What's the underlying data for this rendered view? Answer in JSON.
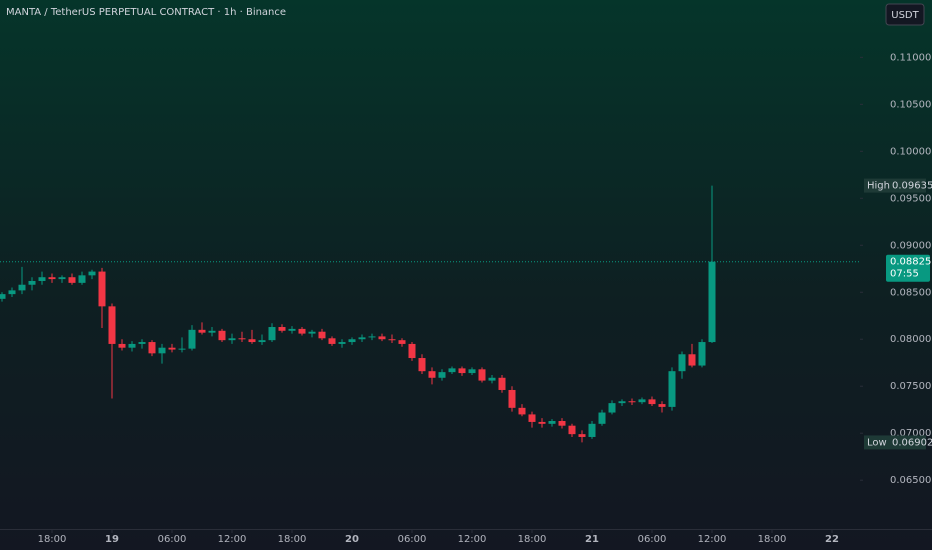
{
  "chart_data": {
    "type": "candlestick",
    "title": "MANTA / TetherUS PERPETUAL CONTRACT · 1h · Binance",
    "currency": "USDT",
    "up_color": "#089981",
    "down_color": "#f23645",
    "x": [
      -5,
      -4,
      -3,
      -2,
      -1,
      0,
      1,
      2,
      3,
      4,
      5,
      6,
      7,
      8,
      9,
      10,
      11,
      12,
      13,
      14,
      15,
      16,
      17,
      18,
      19,
      20,
      21,
      22,
      23,
      24,
      25,
      26,
      27,
      28,
      29,
      30,
      31,
      32,
      33,
      34,
      35,
      36,
      37,
      38,
      39,
      40,
      41,
      42,
      43,
      44,
      45,
      46,
      47,
      48,
      49,
      50,
      51,
      52,
      53,
      54,
      55,
      56,
      57,
      58,
      59,
      60,
      61,
      62,
      63,
      64,
      65,
      66
    ],
    "candles": [
      [
        0.0843,
        0.085,
        0.084,
        0.0848
      ],
      [
        0.0848,
        0.0855,
        0.0845,
        0.0852
      ],
      [
        0.0852,
        0.0877,
        0.0848,
        0.0858
      ],
      [
        0.0858,
        0.0866,
        0.0852,
        0.0862
      ],
      [
        0.0862,
        0.0872,
        0.0858,
        0.0866
      ],
      [
        0.0866,
        0.087,
        0.086,
        0.0864
      ],
      [
        0.0864,
        0.0868,
        0.086,
        0.0866
      ],
      [
        0.0866,
        0.087,
        0.0858,
        0.086
      ],
      [
        0.086,
        0.0872,
        0.0858,
        0.0868
      ],
      [
        0.0868,
        0.0874,
        0.0864,
        0.0872
      ],
      [
        0.0872,
        0.0876,
        0.0812,
        0.0835
      ],
      [
        0.0835,
        0.0838,
        0.0737,
        0.0795
      ],
      [
        0.0795,
        0.08,
        0.0788,
        0.0791
      ],
      [
        0.0791,
        0.0798,
        0.0787,
        0.0795
      ],
      [
        0.0795,
        0.08,
        0.079,
        0.0797
      ],
      [
        0.0797,
        0.0799,
        0.0782,
        0.0785
      ],
      [
        0.0785,
        0.0795,
        0.0774,
        0.0791
      ],
      [
        0.0791,
        0.0795,
        0.0786,
        0.0789
      ],
      [
        0.0789,
        0.0802,
        0.0786,
        0.079
      ],
      [
        0.079,
        0.0815,
        0.0788,
        0.081
      ],
      [
        0.081,
        0.0818,
        0.0805,
        0.0807
      ],
      [
        0.0807,
        0.0813,
        0.0803,
        0.0809
      ],
      [
        0.0809,
        0.0811,
        0.0797,
        0.0799
      ],
      [
        0.0799,
        0.0806,
        0.0795,
        0.0801
      ],
      [
        0.0801,
        0.0808,
        0.0797,
        0.08
      ],
      [
        0.08,
        0.081,
        0.0795,
        0.0797
      ],
      [
        0.0797,
        0.0805,
        0.0794,
        0.0799
      ],
      [
        0.0799,
        0.0817,
        0.0797,
        0.0813
      ],
      [
        0.0813,
        0.0816,
        0.0807,
        0.0809
      ],
      [
        0.0809,
        0.0814,
        0.0806,
        0.0811
      ],
      [
        0.0811,
        0.0813,
        0.0804,
        0.0806
      ],
      [
        0.0806,
        0.081,
        0.0802,
        0.0808
      ],
      [
        0.0808,
        0.0811,
        0.0799,
        0.0801
      ],
      [
        0.0801,
        0.0803,
        0.0793,
        0.0795
      ],
      [
        0.0795,
        0.08,
        0.0791,
        0.0797
      ],
      [
        0.0797,
        0.0802,
        0.0794,
        0.08
      ],
      [
        0.08,
        0.0805,
        0.0797,
        0.0802
      ],
      [
        0.0802,
        0.0806,
        0.0799,
        0.0803
      ],
      [
        0.0803,
        0.0806,
        0.0798,
        0.08
      ],
      [
        0.08,
        0.0805,
        0.0796,
        0.0799
      ],
      [
        0.0799,
        0.0801,
        0.0792,
        0.0795
      ],
      [
        0.0795,
        0.0797,
        0.0777,
        0.078
      ],
      [
        0.078,
        0.0784,
        0.0763,
        0.0766
      ],
      [
        0.0766,
        0.077,
        0.0752,
        0.0759
      ],
      [
        0.0759,
        0.0768,
        0.0756,
        0.0765
      ],
      [
        0.0765,
        0.0771,
        0.0763,
        0.0769
      ],
      [
        0.0769,
        0.0771,
        0.0761,
        0.0764
      ],
      [
        0.0764,
        0.077,
        0.0762,
        0.0768
      ],
      [
        0.0768,
        0.077,
        0.0754,
        0.0756
      ],
      [
        0.0756,
        0.0762,
        0.0753,
        0.0759
      ],
      [
        0.0759,
        0.0762,
        0.0743,
        0.0746
      ],
      [
        0.0746,
        0.075,
        0.0723,
        0.0727
      ],
      [
        0.0727,
        0.0731,
        0.0718,
        0.072
      ],
      [
        0.072,
        0.0723,
        0.0706,
        0.0712
      ],
      [
        0.0712,
        0.0716,
        0.0706,
        0.071
      ],
      [
        0.071,
        0.0715,
        0.0707,
        0.0713
      ],
      [
        0.0713,
        0.0716,
        0.0705,
        0.0708
      ],
      [
        0.0708,
        0.071,
        0.0696,
        0.0699
      ],
      [
        0.0699,
        0.0703,
        0.06902,
        0.0696
      ],
      [
        0.0696,
        0.0713,
        0.0694,
        0.071
      ],
      [
        0.071,
        0.0725,
        0.0708,
        0.0722
      ],
      [
        0.0722,
        0.0735,
        0.072,
        0.0732
      ],
      [
        0.0732,
        0.0736,
        0.0729,
        0.0734
      ],
      [
        0.0734,
        0.0737,
        0.073,
        0.0733
      ],
      [
        0.0733,
        0.0738,
        0.0731,
        0.0736
      ],
      [
        0.0736,
        0.0739,
        0.0729,
        0.0731
      ],
      [
        0.0731,
        0.0734,
        0.0722,
        0.0728
      ],
      [
        0.0728,
        0.077,
        0.0724,
        0.0766
      ],
      [
        0.0766,
        0.0787,
        0.0758,
        0.0784
      ],
      [
        0.0784,
        0.0795,
        0.077,
        0.0772
      ],
      [
        0.0772,
        0.08,
        0.077,
        0.0797
      ],
      [
        0.0797,
        0.09635,
        0.0796,
        0.08825
      ]
    ],
    "ylim": [
      0.0597,
      0.1161
    ],
    "yticks": [
      {
        "value": 0.11,
        "label": "0.11000"
      },
      {
        "value": 0.105,
        "label": "0.10500"
      },
      {
        "value": 0.1,
        "label": "0.10000"
      },
      {
        "value": 0.095,
        "label": "0.09500"
      },
      {
        "value": 0.09,
        "label": "0.09000"
      },
      {
        "value": 0.085,
        "label": "0.08500"
      },
      {
        "value": 0.08,
        "label": "0.08000"
      },
      {
        "value": 0.075,
        "label": "0.07500"
      },
      {
        "value": 0.07,
        "label": "0.07000"
      },
      {
        "value": 0.065,
        "label": "0.06500"
      }
    ],
    "xlim": [
      -5.2,
      80.8
    ],
    "xticks": [
      {
        "value": 0,
        "label": "18:00"
      },
      {
        "value": 6,
        "label": "19"
      },
      {
        "value": 12,
        "label": "06:00"
      },
      {
        "value": 18,
        "label": "12:00"
      },
      {
        "value": 24,
        "label": "18:00"
      },
      {
        "value": 30,
        "label": "20"
      },
      {
        "value": 36,
        "label": "06:00"
      },
      {
        "value": 42,
        "label": "12:00"
      },
      {
        "value": 48,
        "label": "18:00"
      },
      {
        "value": 54,
        "label": "21"
      },
      {
        "value": 60,
        "label": "06:00"
      },
      {
        "value": 66,
        "label": "12:00"
      },
      {
        "value": 72,
        "label": "18:00"
      },
      {
        "value": 78,
        "label": "22"
      }
    ],
    "high": {
      "label": "High",
      "value": 0.09635,
      "value_label": "0.09635"
    },
    "low": {
      "label": "Low",
      "value": 0.06902,
      "value_label": "0.06902"
    },
    "last": {
      "value": 0.08825,
      "value_label": "0.08825",
      "countdown": "07:55"
    }
  }
}
